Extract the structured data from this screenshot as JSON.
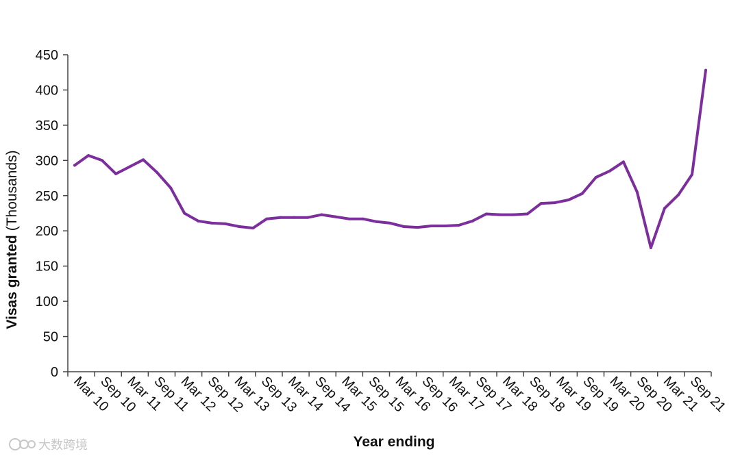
{
  "chart_data": {
    "type": "line",
    "xlabel": "Year ending",
    "ylabel": "Visas granted",
    "ylabel_unit": "(Thousands)",
    "ylim": [
      0,
      450
    ],
    "yticks": [
      0,
      50,
      100,
      150,
      200,
      250,
      300,
      350,
      400,
      450
    ],
    "grid": false,
    "legend": "none",
    "xtick_labels": [
      "Mar 10",
      "Sep 10",
      "Mar 11",
      "Sep 11",
      "Mar 12",
      "Sep 12",
      "Mar 13",
      "Sep 13",
      "Mar 14",
      "Sep 14",
      "Mar 15",
      "Sep 15",
      "Mar 16",
      "Sep 16",
      "Mar 17",
      "Sep 17",
      "Mar 18",
      "Sep 18",
      "Mar 19",
      "Sep 19",
      "Mar 20",
      "Sep 20",
      "Mar 21",
      "Sep 21"
    ],
    "series": [
      {
        "color": "#7b2e9c",
        "values": [
          293,
          307,
          300,
          281,
          291,
          301,
          283,
          261,
          225,
          214,
          211,
          210,
          206,
          204,
          217,
          219,
          219,
          219,
          223,
          220,
          217,
          217,
          213,
          211,
          206,
          205,
          207,
          207,
          208,
          214,
          224,
          223,
          223,
          224,
          239,
          240,
          244,
          253,
          276,
          285,
          298,
          255,
          176,
          232,
          251,
          280,
          428
        ]
      }
    ]
  },
  "watermark": {
    "text": "大数跨境"
  }
}
